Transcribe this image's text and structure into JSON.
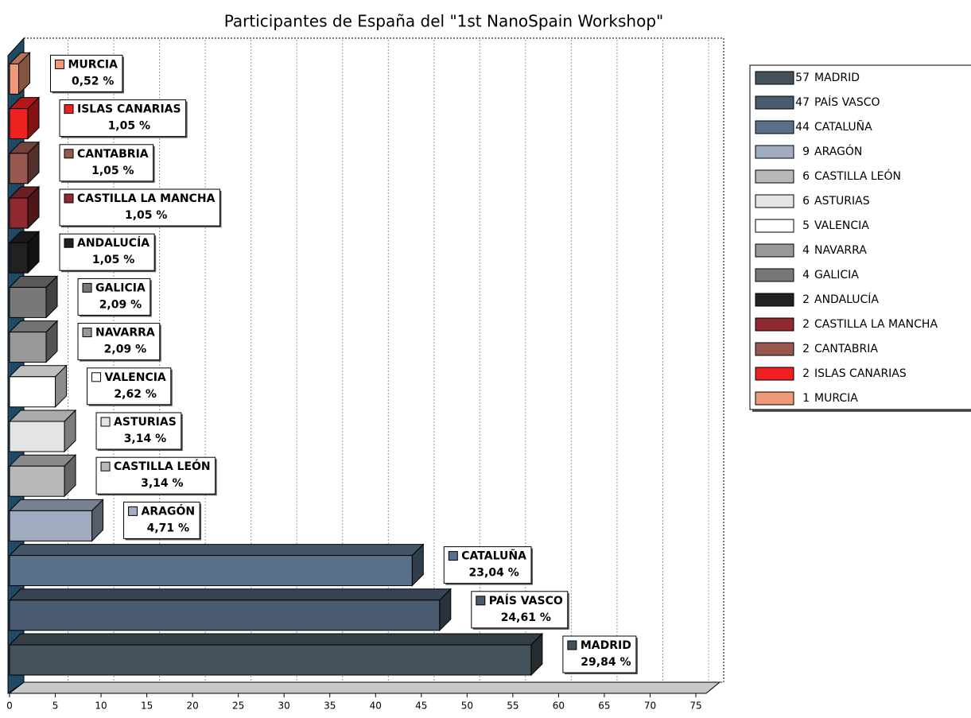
{
  "chart_data": {
    "type": "bar",
    "orientation": "horizontal",
    "title": "Participantes de España del \"1st NanoSpain Workshop\"",
    "categories": [
      "MADRID",
      "PAÍS VASCO",
      "CATALUÑA",
      "ARAGÓN",
      "CASTILLA LEÓN",
      "ASTURIAS",
      "VALENCIA",
      "NAVARRA",
      "GALICIA",
      "ANDALUCÍA",
      "CASTILLA LA MANCHA",
      "CANTABRIA",
      "ISLAS CANARIAS",
      "MURCIA"
    ],
    "values": [
      57,
      47,
      44,
      9,
      6,
      6,
      5,
      4,
      4,
      2,
      2,
      2,
      2,
      1
    ],
    "percent_labels": [
      "29,84 %",
      "24,61 %",
      "23,04 %",
      "4,71 %",
      "3,14 %",
      "3,14 %",
      "2,62 %",
      "2,09 %",
      "2,09 %",
      "1,05 %",
      "1,05 %",
      "1,05 %",
      "1,05 %",
      "0,52 %"
    ],
    "colors": [
      "#44525c",
      "#4a5a70",
      "#587088",
      "#a0acc0",
      "#b8b8b8",
      "#e4e4e4",
      "#ffffff",
      "#989898",
      "#787878",
      "#222022",
      "#902830",
      "#985850",
      "#ee2020",
      "#f09878"
    ],
    "xlim": [
      0,
      76
    ],
    "xticks": [
      0,
      5,
      10,
      15,
      20,
      25,
      30,
      35,
      40,
      45,
      50,
      55,
      60,
      65,
      70,
      75
    ],
    "grid": true,
    "legend": "right"
  }
}
